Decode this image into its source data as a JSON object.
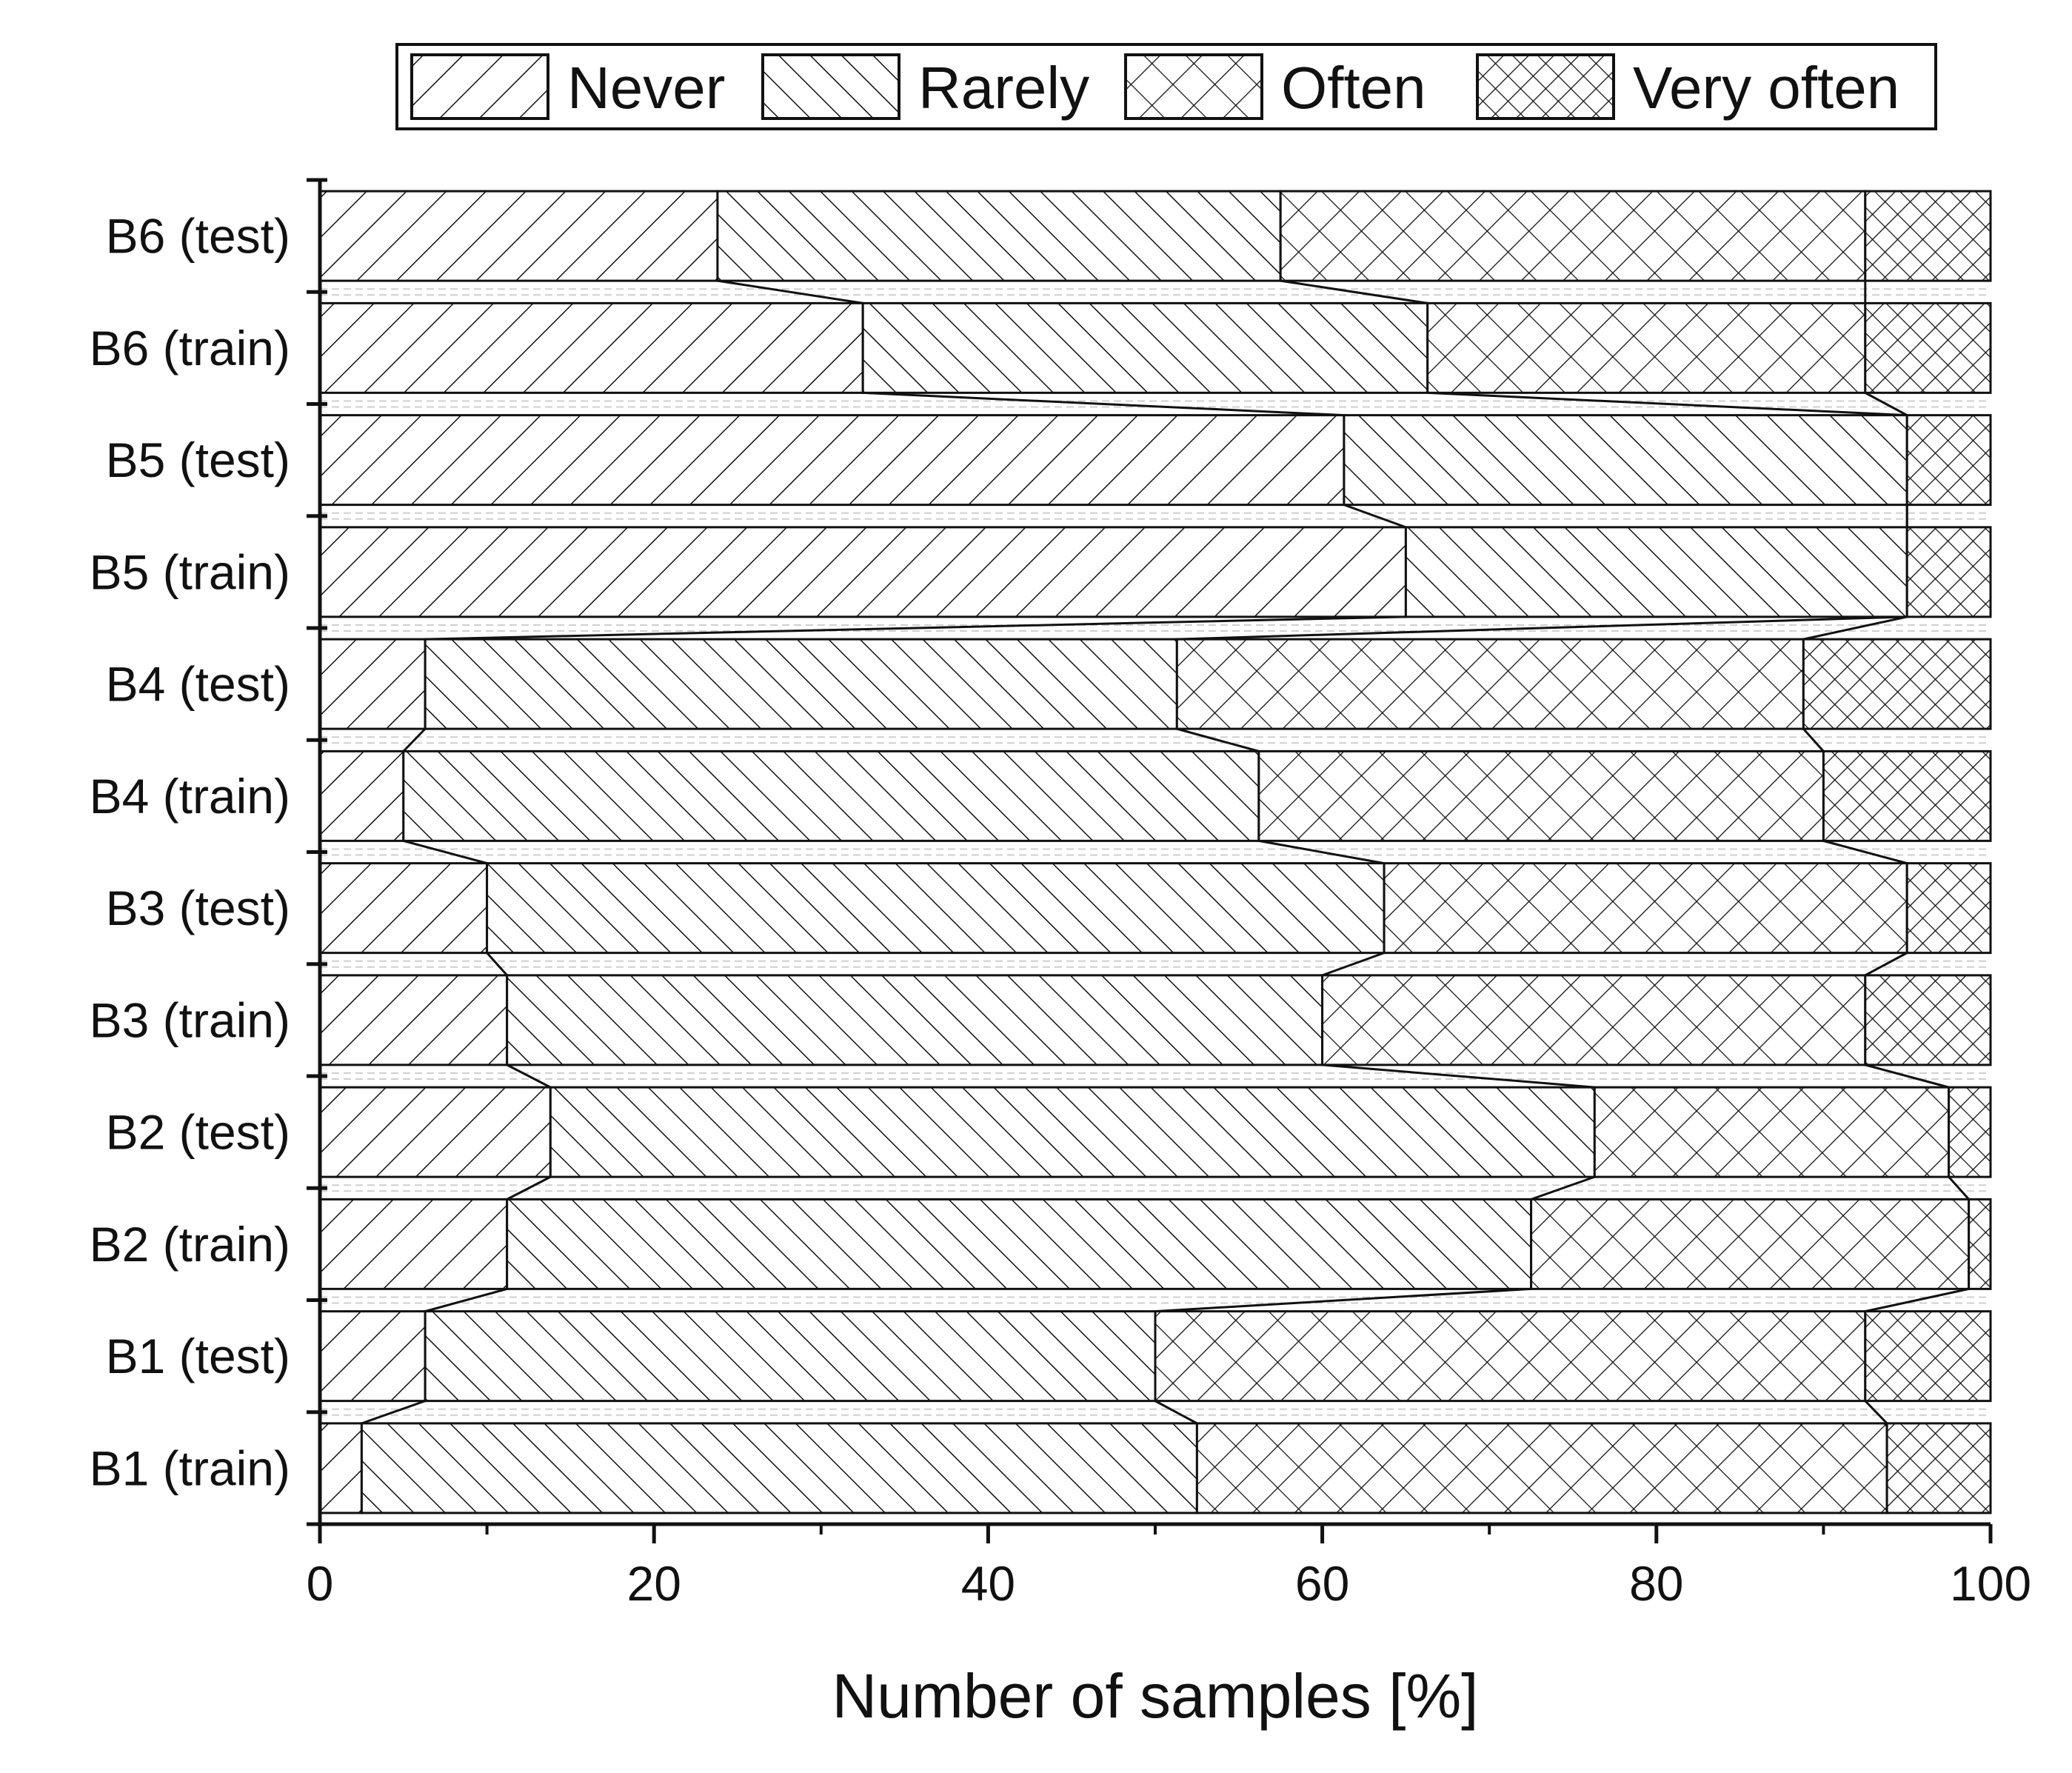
{
  "chart_data": {
    "type": "bar",
    "orientation": "horizontal",
    "stacked": true,
    "normalized": true,
    "title": "",
    "xlabel": "Number of samples [%]",
    "ylabel": "",
    "xlim": [
      0,
      100
    ],
    "x_ticks": [
      "0",
      "20",
      "40",
      "60",
      "80",
      "100"
    ],
    "legend_position": "top-right",
    "grid": false,
    "connector_lines": true,
    "categories": [
      "B1 (train)",
      "B1 (test)",
      "B2 (train)",
      "B2 (test)",
      "B3 (train)",
      "B3 (test)",
      "B4 (train)",
      "B4 (test)",
      "B5 (train)",
      "B5 (test)",
      "B6 (train)",
      "B6 (test)"
    ],
    "series": [
      {
        "name": "Never",
        "pattern": "diagonal-forward-wide",
        "values": [
          2.5,
          6.3,
          11.2,
          13.8,
          11.2,
          10.0,
          5.0,
          6.3,
          65.0,
          61.3,
          32.5,
          23.8
        ]
      },
      {
        "name": "Rarely",
        "pattern": "diagonal-back",
        "values": [
          50.0,
          43.7,
          61.3,
          62.5,
          48.8,
          53.7,
          51.2,
          45.0,
          30.0,
          33.7,
          33.8,
          33.7
        ]
      },
      {
        "name": "Often",
        "pattern": "crosshatch-wide",
        "values": [
          41.3,
          42.5,
          26.2,
          21.2,
          32.5,
          31.3,
          33.8,
          37.5,
          0.0,
          0.0,
          26.2,
          35.0
        ]
      },
      {
        "name": "Very often",
        "pattern": "crosshatch-dense",
        "values": [
          6.2,
          7.5,
          1.3,
          2.5,
          7.5,
          5.0,
          10.0,
          11.2,
          5.0,
          5.0,
          7.5,
          7.5
        ]
      }
    ]
  }
}
